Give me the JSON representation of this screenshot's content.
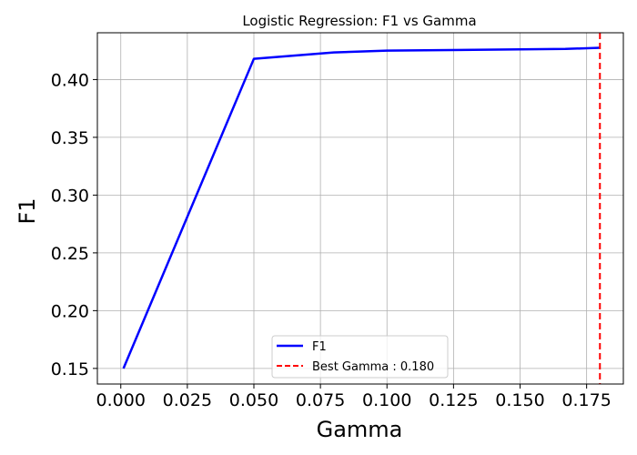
{
  "chart_data": {
    "type": "line",
    "title": "Logistic Regression: F1 vs Gamma",
    "xlabel": "Gamma",
    "ylabel": "F1",
    "xlim": [
      -0.0088,
      0.1888
    ],
    "ylim": [
      0.1365,
      0.4405
    ],
    "grid": true,
    "x_ticks": [
      0.0,
      0.025,
      0.05,
      0.075,
      0.1,
      0.125,
      0.15,
      0.175
    ],
    "x_tick_labels": [
      "0.000",
      "0.025",
      "0.050",
      "0.075",
      "0.100",
      "0.125",
      "0.150",
      "0.175"
    ],
    "y_ticks": [
      0.15,
      0.2,
      0.25,
      0.3,
      0.35,
      0.4
    ],
    "y_tick_labels": [
      "0.15",
      "0.20",
      "0.25",
      "0.30",
      "0.35",
      "0.40"
    ],
    "series": [
      {
        "name": "F1",
        "style": "solid",
        "color": "#0000ff",
        "x": [
          0.001,
          0.05,
          0.08,
          0.1,
          0.167,
          0.18
        ],
        "y": [
          0.15,
          0.418,
          0.4235,
          0.425,
          0.4265,
          0.4275
        ]
      }
    ],
    "vlines": [
      {
        "name": "Best Gamma : 0.180",
        "x": 0.18,
        "style": "dashed",
        "color": "#ff0000"
      }
    ],
    "legend": {
      "position": "lower-center",
      "entries": [
        "F1",
        "Best Gamma : 0.180"
      ]
    }
  }
}
